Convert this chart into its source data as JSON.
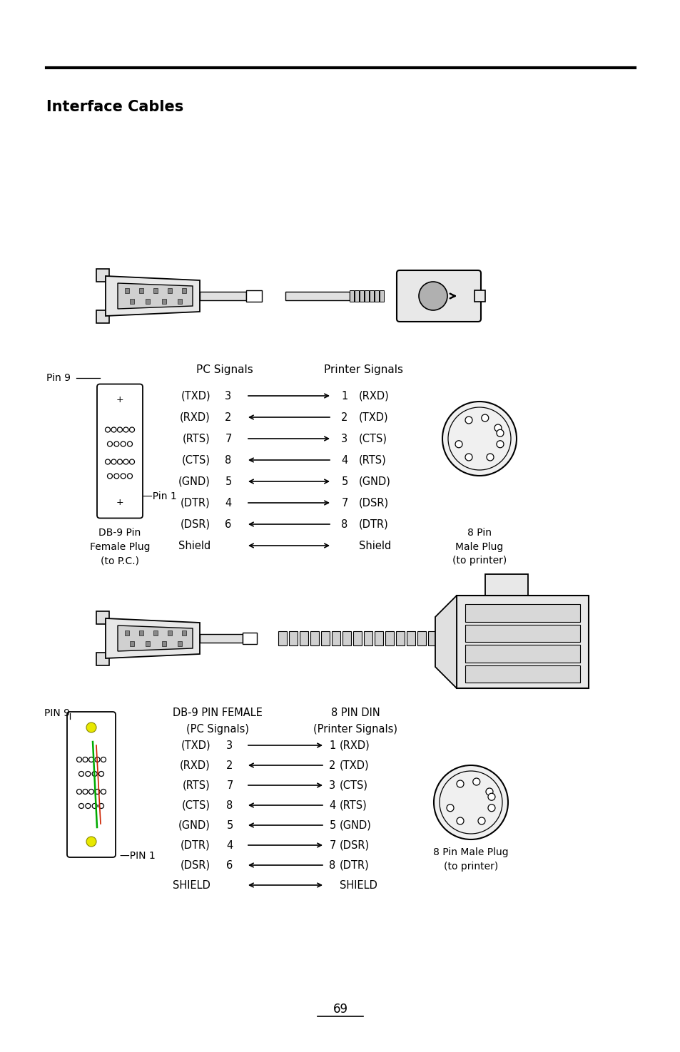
{
  "title": "Interface Cables",
  "bg_color": "#ffffff",
  "text_color": "#000000",
  "page_number": "69",
  "diagram1": {
    "pc_signals_label": "PC Signals",
    "printer_signals_label": "Printer Signals",
    "db9_label": "DB-9 Pin\nFemale Plug\n(to P.C.)",
    "pin8_label": "8 Pin\nMale Plug\n(to printer)",
    "pin9_label": "Pin 9",
    "pin1_label": "Pin 1",
    "connections": [
      {
        "pc_sig": "(TXD)",
        "pc_pin": "3",
        "arrow": "right",
        "pr_pin": "1",
        "pr_sig": "(RXD)"
      },
      {
        "pc_sig": "(RXD)",
        "pc_pin": "2",
        "arrow": "left",
        "pr_pin": "2",
        "pr_sig": "(TXD)"
      },
      {
        "pc_sig": "(RTS)",
        "pc_pin": "7",
        "arrow": "right",
        "pr_pin": "3",
        "pr_sig": "(CTS)"
      },
      {
        "pc_sig": "(CTS)",
        "pc_pin": "8",
        "arrow": "left",
        "pr_pin": "4",
        "pr_sig": "(RTS)"
      },
      {
        "pc_sig": "(GND)",
        "pc_pin": "5",
        "arrow": "both",
        "pr_pin": "5",
        "pr_sig": "(GND)"
      },
      {
        "pc_sig": "(DTR)",
        "pc_pin": "4",
        "arrow": "right",
        "pr_pin": "7",
        "pr_sig": "(DSR)"
      },
      {
        "pc_sig": "(DSR)",
        "pc_pin": "6",
        "arrow": "left",
        "pr_pin": "8",
        "pr_sig": "(DTR)"
      },
      {
        "pc_sig": "Shield",
        "pc_pin": "",
        "arrow": "both",
        "pr_pin": "",
        "pr_sig": "Shield"
      }
    ]
  },
  "diagram2": {
    "pc_signals_label": "DB-9 PIN FEMALE\n(PC Signals)",
    "printer_signals_label": "8 PIN DIN\n(Printer Signals)",
    "pin8_label": "8 Pin Male Plug\n(to printer)",
    "pin9_label": "PIN 9",
    "pin1_label": "PIN 1",
    "connections": [
      {
        "pc_sig": "(TXD)",
        "pc_pin": "3",
        "arrow": "right",
        "pr_pin": "1",
        "pr_sig": "(RXD)"
      },
      {
        "pc_sig": "(RXD)",
        "pc_pin": "2",
        "arrow": "left",
        "pr_pin": "2",
        "pr_sig": "(TXD)"
      },
      {
        "pc_sig": "(RTS)",
        "pc_pin": "7",
        "arrow": "right",
        "pr_pin": "3",
        "pr_sig": "(CTS)"
      },
      {
        "pc_sig": "(CTS)",
        "pc_pin": "8",
        "arrow": "left",
        "pr_pin": "4",
        "pr_sig": "(RTS)"
      },
      {
        "pc_sig": "(GND)",
        "pc_pin": "5",
        "arrow": "left",
        "pr_pin": "5",
        "pr_sig": "(GND)"
      },
      {
        "pc_sig": "(DTR)",
        "pc_pin": "4",
        "arrow": "right",
        "pr_pin": "7",
        "pr_sig": "(DSR)"
      },
      {
        "pc_sig": "(DSR)",
        "pc_pin": "6",
        "arrow": "left",
        "pr_pin": "8",
        "pr_sig": "(DTR)"
      },
      {
        "pc_sig": "SHIELD",
        "pc_pin": "",
        "arrow": "both",
        "pr_pin": "",
        "pr_sig": "SHIELD"
      }
    ]
  }
}
